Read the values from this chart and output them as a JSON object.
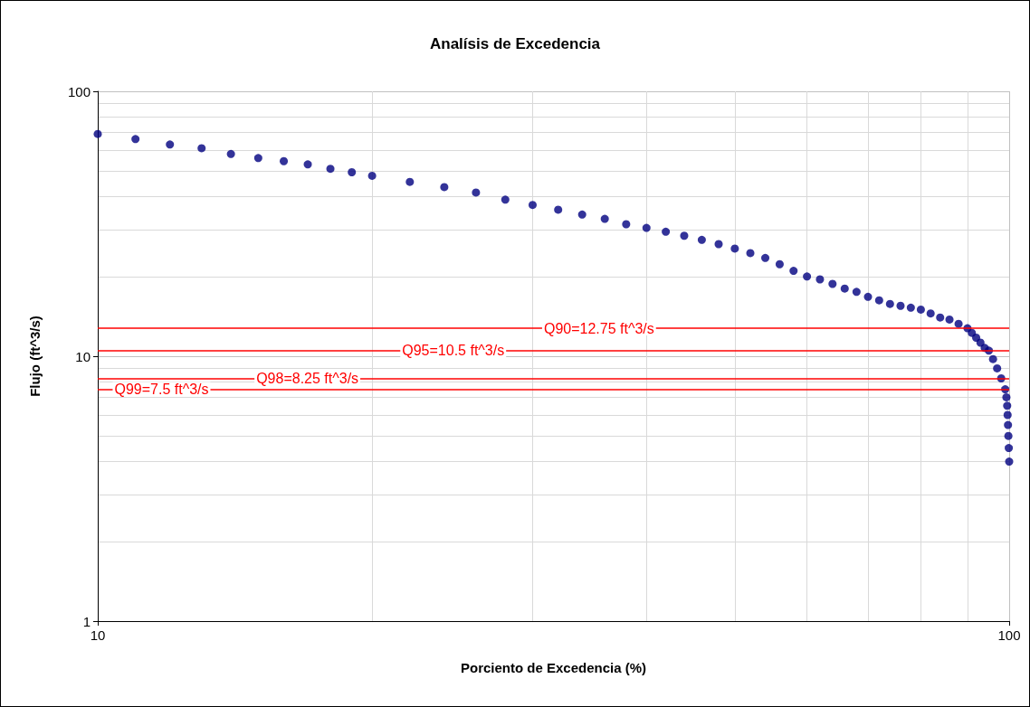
{
  "chart_data": {
    "type": "scatter",
    "title": "Analísis de Excedencia",
    "xlabel": "Porciento de Excedencia (%)",
    "ylabel": "Flujo (ft^3/s)",
    "log": "xy",
    "xlim": [
      10,
      100
    ],
    "xticks": [
      10,
      100
    ],
    "ylim": [
      1,
      100
    ],
    "yticks": [
      1,
      10,
      100
    ],
    "grid": true,
    "marker": "circle",
    "x": [
      10,
      11,
      12,
      13,
      14,
      15,
      16,
      17,
      18,
      19,
      20,
      22,
      24,
      26,
      28,
      30,
      32,
      34,
      36,
      38,
      40,
      42,
      44,
      46,
      48,
      50,
      52,
      54,
      56,
      58,
      60,
      62,
      64,
      66,
      68,
      70,
      72,
      74,
      76,
      78,
      80,
      82,
      84,
      86,
      88,
      90,
      91,
      92,
      93,
      94,
      95,
      96,
      97,
      98,
      99,
      99.3,
      99.5,
      99.6,
      99.7,
      99.8,
      99.9,
      100
    ],
    "series": [
      {
        "color": "#000080",
        "values": [
          69,
          66,
          63,
          61,
          58,
          56,
          54.5,
          53,
          51,
          49.5,
          48,
          45.5,
          43.5,
          41.5,
          39,
          37.25,
          35.75,
          34.25,
          33,
          31.5,
          30.5,
          29.5,
          28.5,
          27.5,
          26.5,
          25.5,
          24.5,
          23.5,
          22.25,
          21,
          20,
          19.5,
          18.75,
          18,
          17.5,
          16.75,
          16.25,
          15.75,
          15.5,
          15.25,
          15,
          14.5,
          14,
          13.75,
          13.25,
          12.75,
          12.25,
          11.75,
          11.25,
          10.75,
          10.5,
          9.75,
          9,
          8.25,
          7.5,
          7,
          6.5,
          6,
          5.5,
          5,
          4.5,
          4
        ]
      }
    ],
    "ref_lines": [
      {
        "axis": "y",
        "value": 12.75,
        "label": "Q90=12.75 ft^3/s",
        "color": "#ff0000"
      },
      {
        "axis": "y",
        "value": 10.5,
        "label": "Q95=10.5 ft^3/s",
        "color": "#ff0000"
      },
      {
        "axis": "y",
        "value": 8.25,
        "label": "Q98=8.25 ft^3/s",
        "color": "#ff0000"
      },
      {
        "axis": "y",
        "value": 7.5,
        "label": "Q99=7.5 ft^3/s",
        "color": "#ff0000"
      }
    ]
  }
}
